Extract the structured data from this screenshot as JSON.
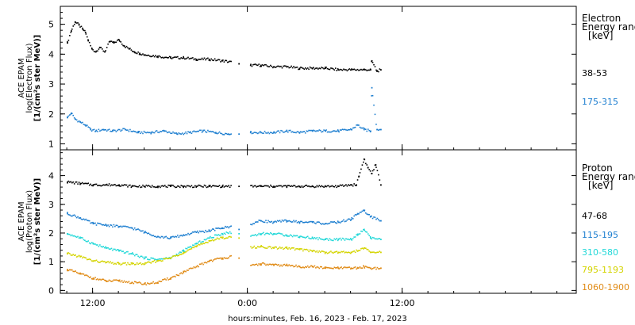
{
  "chart_data": [
    {
      "type": "scatter",
      "panel": "electron",
      "ylabel": [
        "ACE EPAM",
        "log(Electron Flux)",
        "[1/(cm²s ster MeV)]"
      ],
      "ylim": [
        0.8,
        5.6
      ],
      "yticks": [
        1,
        2,
        3,
        4,
        5
      ],
      "xlim": [
        9.5,
        49.5
      ],
      "legend_title": [
        "Electron",
        "Energy range",
        "[keV]"
      ],
      "series": [
        {
          "name": "38-53",
          "color": "#000000",
          "x": [
            10.0,
            10.3,
            10.6,
            10.9,
            11.2,
            11.4,
            11.6,
            11.9,
            12.2,
            12.5,
            12.9,
            13.3,
            13.6,
            14.0,
            14.4,
            14.8,
            15.2,
            15.6,
            16.0,
            17.0,
            18.0,
            19.0,
            20.0,
            21.0,
            22.0,
            22.8,
            23.3,
            23.7,
            24.2,
            25.0,
            26.0,
            27.0,
            28.0,
            29.0,
            30.0,
            31.0,
            32.0,
            33.0,
            33.5,
            33.6,
            34.0,
            34.3
          ],
          "y": [
            4.4,
            4.8,
            5.1,
            5.0,
            4.85,
            4.75,
            4.5,
            4.2,
            4.1,
            4.25,
            4.1,
            4.45,
            4.4,
            4.5,
            4.3,
            4.2,
            4.1,
            4.05,
            4.0,
            3.95,
            3.9,
            3.9,
            3.85,
            3.85,
            3.8,
            3.75,
            3.7,
            3.7,
            3.65,
            3.65,
            3.6,
            3.6,
            3.55,
            3.55,
            3.55,
            3.5,
            3.5,
            3.5,
            3.5,
            3.8,
            3.45,
            3.5
          ]
        },
        {
          "name": "175-315",
          "color": "#1e7fd0",
          "x": [
            10.0,
            10.3,
            10.6,
            11.0,
            11.4,
            11.8,
            12.2,
            12.8,
            13.5,
            14.5,
            15.5,
            16.5,
            17.5,
            18.5,
            19.5,
            20.5,
            21.5,
            22.5,
            22.8,
            23.3,
            23.7,
            24.2,
            25.0,
            26.0,
            27.0,
            28.0,
            29.0,
            30.0,
            31.0,
            32.0,
            32.5,
            33.0,
            33.5,
            33.6,
            34.0,
            34.3
          ],
          "y": [
            1.9,
            2.05,
            1.85,
            1.75,
            1.65,
            1.5,
            1.45,
            1.5,
            1.45,
            1.5,
            1.4,
            1.4,
            1.45,
            1.35,
            1.4,
            1.45,
            1.4,
            1.35,
            1.4,
            1.35,
            1.45,
            1.4,
            1.4,
            1.4,
            1.45,
            1.4,
            1.45,
            1.45,
            1.45,
            1.5,
            1.65,
            1.5,
            1.45,
            2.9,
            1.5,
            1.5
          ]
        }
      ]
    },
    {
      "type": "scatter",
      "panel": "proton",
      "ylabel": [
        "ACE EPAM",
        "log(Proton Flux)",
        "[1/(cm²s ster MeV)]"
      ],
      "ylim": [
        -0.1,
        4.9
      ],
      "yticks": [
        0,
        1,
        2,
        3,
        4
      ],
      "xlim": [
        9.5,
        49.5
      ],
      "xticks": [
        {
          "x": 12,
          "label": "12:00"
        },
        {
          "x": 24,
          "label": "0:00"
        },
        {
          "x": 36,
          "label": "12:00"
        }
      ],
      "xlabel": "hours:minutes, Feb. 16, 2023 - Feb. 17, 2023",
      "legend_title": [
        "Proton",
        "Energy range",
        "[keV]"
      ],
      "series": [
        {
          "name": "47-68",
          "color": "#000000",
          "x": [
            10.0,
            11.0,
            12.0,
            13.0,
            14.0,
            15.0,
            16.0,
            17.0,
            18.0,
            19.0,
            20.0,
            21.0,
            22.0,
            22.8,
            23.3,
            24.0,
            25.0,
            26.0,
            27.0,
            28.0,
            29.0,
            30.0,
            31.0,
            32.0,
            32.4,
            32.6,
            33.0,
            33.3,
            33.6,
            33.9,
            34.3
          ],
          "y": [
            3.8,
            3.75,
            3.7,
            3.7,
            3.7,
            3.65,
            3.65,
            3.65,
            3.65,
            3.65,
            3.65,
            3.65,
            3.65,
            3.65,
            3.65,
            3.65,
            3.65,
            3.65,
            3.65,
            3.65,
            3.65,
            3.65,
            3.65,
            3.7,
            3.7,
            4.0,
            4.6,
            4.3,
            4.1,
            4.4,
            3.7
          ]
        },
        {
          "name": "115-195",
          "color": "#1e7fd0",
          "x": [
            10.0,
            11.0,
            12.0,
            13.0,
            14.0,
            15.0,
            16.0,
            17.0,
            18.0,
            19.0,
            20.0,
            21.0,
            22.0,
            22.8,
            23.3,
            24.0,
            25.0,
            26.0,
            27.0,
            28.0,
            29.0,
            30.0,
            31.0,
            32.0,
            32.5,
            33.0,
            33.5,
            34.3
          ],
          "y": [
            2.7,
            2.55,
            2.35,
            2.3,
            2.25,
            2.2,
            2.05,
            1.9,
            1.85,
            1.95,
            2.05,
            2.1,
            2.2,
            2.25,
            2.15,
            2.3,
            2.45,
            2.4,
            2.45,
            2.4,
            2.4,
            2.35,
            2.4,
            2.5,
            2.7,
            2.8,
            2.6,
            2.45
          ]
        },
        {
          "name": "310-580",
          "color": "#22d8d8",
          "x": [
            10.0,
            11.0,
            12.0,
            13.0,
            14.0,
            15.0,
            16.0,
            17.0,
            18.0,
            19.0,
            20.0,
            21.0,
            22.0,
            22.8,
            23.3,
            24.0,
            25.0,
            26.0,
            27.0,
            28.0,
            29.0,
            30.0,
            31.0,
            32.0,
            32.5,
            33.0,
            33.5,
            34.3
          ],
          "y": [
            2.0,
            1.85,
            1.65,
            1.5,
            1.4,
            1.3,
            1.15,
            1.1,
            1.15,
            1.4,
            1.65,
            1.85,
            2.0,
            2.05,
            2.0,
            1.9,
            2.0,
            2.0,
            1.95,
            1.9,
            1.85,
            1.8,
            1.8,
            1.8,
            1.95,
            2.15,
            1.85,
            1.8
          ]
        },
        {
          "name": "795-1193",
          "color": "#d4d400",
          "x": [
            10.0,
            11.0,
            12.0,
            13.0,
            14.0,
            15.0,
            16.0,
            17.0,
            18.0,
            19.0,
            20.0,
            21.0,
            22.0,
            22.8,
            23.3,
            24.0,
            25.0,
            26.0,
            27.0,
            28.0,
            29.0,
            30.0,
            31.0,
            32.0,
            32.5,
            33.0,
            33.5,
            34.3
          ],
          "y": [
            1.3,
            1.2,
            1.05,
            1.0,
            0.95,
            0.95,
            0.95,
            1.05,
            1.15,
            1.35,
            1.55,
            1.75,
            1.85,
            1.9,
            1.85,
            1.5,
            1.55,
            1.5,
            1.5,
            1.45,
            1.4,
            1.35,
            1.35,
            1.35,
            1.4,
            1.5,
            1.35,
            1.35
          ]
        },
        {
          "name": "1060-1900",
          "color": "#e08a14",
          "x": [
            10.0,
            11.0,
            12.0,
            13.0,
            14.0,
            15.0,
            16.0,
            17.0,
            18.0,
            19.0,
            20.0,
            21.0,
            22.0,
            22.8,
            23.3,
            24.0,
            25.0,
            26.0,
            27.0,
            28.0,
            29.0,
            30.0,
            31.0,
            32.0,
            32.5,
            33.0,
            33.5,
            34.3
          ],
          "y": [
            0.75,
            0.6,
            0.45,
            0.35,
            0.35,
            0.3,
            0.25,
            0.3,
            0.45,
            0.65,
            0.85,
            1.05,
            1.15,
            1.2,
            1.15,
            0.85,
            0.95,
            0.9,
            0.9,
            0.85,
            0.85,
            0.8,
            0.8,
            0.8,
            0.8,
            0.85,
            0.8,
            0.8
          ]
        }
      ]
    }
  ]
}
